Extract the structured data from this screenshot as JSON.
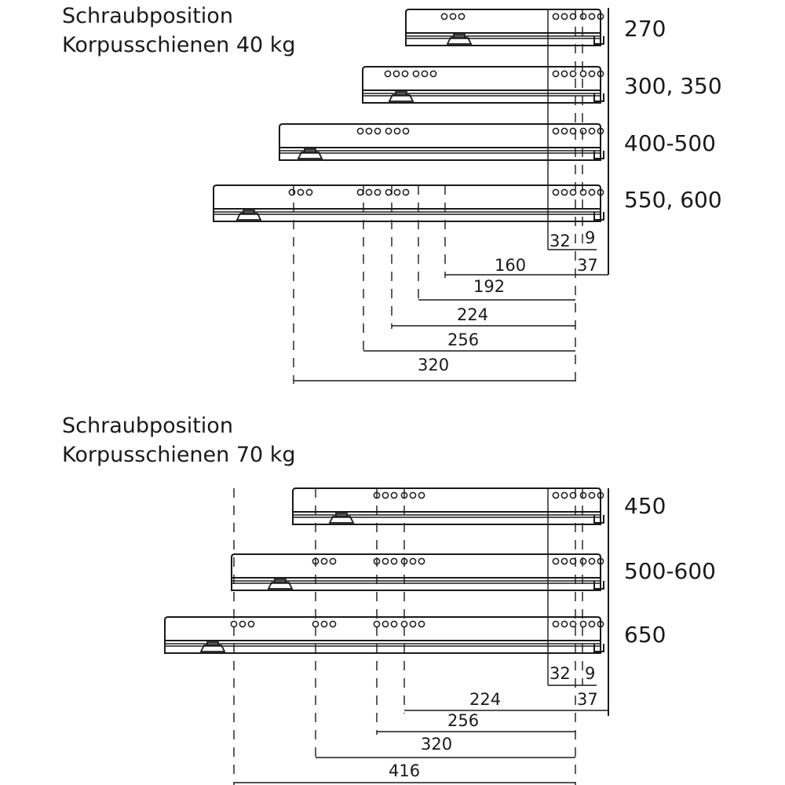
{
  "sections": [
    {
      "title_line1": "Schraubposition",
      "title_line2": "Korpusschienen 40 kg",
      "rail_sizes": [
        "270",
        "300, 350",
        "400-500",
        "550, 600"
      ],
      "dimensions": [
        "160",
        "192",
        "224",
        "256",
        "320"
      ],
      "small_dimensions": [
        "32",
        "9",
        "37"
      ]
    },
    {
      "title_line1": "Schraubposition",
      "title_line2": "Korpusschienen 70 kg",
      "rail_sizes": [
        "450",
        "500-600",
        "650"
      ],
      "dimensions": [
        "224",
        "256",
        "320",
        "416"
      ],
      "small_dimensions": [
        "32",
        "9",
        "37"
      ]
    }
  ]
}
